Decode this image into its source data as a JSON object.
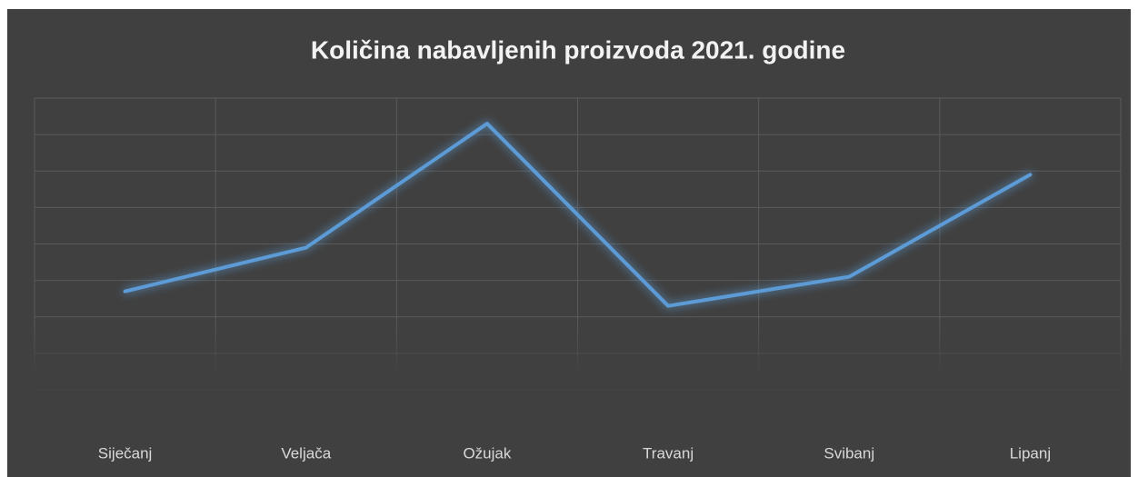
{
  "chart_data": {
    "type": "line",
    "title": "Količina nabavljenih proizvoda 2021. godine",
    "categories": [
      "Siječanj",
      "Veljača",
      "Ožujak",
      "Travanj",
      "Svibanj",
      "Lipanj"
    ],
    "series": [
      {
        "color": "#5b9bd5",
        "values": [
          2.7,
          3.9,
          7.3,
          2.3,
          3.1,
          5.9
        ]
      }
    ],
    "ylim": [
      0,
      8
    ],
    "yticks": [
      0,
      1,
      2,
      3,
      4,
      5,
      6,
      7,
      8
    ],
    "grid": true
  }
}
